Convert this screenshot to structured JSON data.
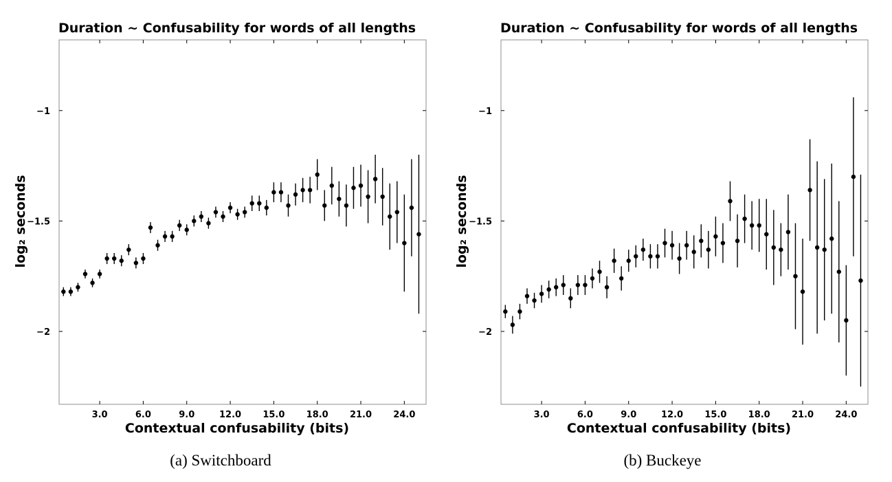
{
  "chart_data": [
    {
      "type": "scatter",
      "title": "Duration ~ Confusability for words of all lengths",
      "xlabel": "Contextual confusability (bits)",
      "ylabel": "log₂ seconds",
      "caption": "(a) Switchboard",
      "xlim": [
        0.2,
        25.5
      ],
      "ylim": [
        -2.33,
        -0.68
      ],
      "xticks": [
        3.0,
        6.0,
        9.0,
        12.0,
        15.0,
        18.0,
        21.0,
        24.0
      ],
      "yticks": [
        -1,
        -1.5,
        -2
      ],
      "grid": false,
      "points": [
        {
          "x": 0.5,
          "y": -1.82,
          "err": 0.02
        },
        {
          "x": 1.0,
          "y": -1.82,
          "err": 0.02
        },
        {
          "x": 1.5,
          "y": -1.8,
          "err": 0.02
        },
        {
          "x": 2.0,
          "y": -1.74,
          "err": 0.02
        },
        {
          "x": 2.5,
          "y": -1.78,
          "err": 0.02
        },
        {
          "x": 3.0,
          "y": -1.74,
          "err": 0.02
        },
        {
          "x": 3.5,
          "y": -1.67,
          "err": 0.025
        },
        {
          "x": 4.0,
          "y": -1.67,
          "err": 0.025
        },
        {
          "x": 4.5,
          "y": -1.68,
          "err": 0.025
        },
        {
          "x": 5.0,
          "y": -1.63,
          "err": 0.025
        },
        {
          "x": 5.5,
          "y": -1.69,
          "err": 0.025
        },
        {
          "x": 6.0,
          "y": -1.67,
          "err": 0.025
        },
        {
          "x": 6.5,
          "y": -1.53,
          "err": 0.025
        },
        {
          "x": 7.0,
          "y": -1.61,
          "err": 0.025
        },
        {
          "x": 7.5,
          "y": -1.57,
          "err": 0.025
        },
        {
          "x": 8.0,
          "y": -1.57,
          "err": 0.025
        },
        {
          "x": 8.5,
          "y": -1.52,
          "err": 0.025
        },
        {
          "x": 9.0,
          "y": -1.54,
          "err": 0.025
        },
        {
          "x": 9.5,
          "y": -1.5,
          "err": 0.025
        },
        {
          "x": 10.0,
          "y": -1.48,
          "err": 0.025
        },
        {
          "x": 10.5,
          "y": -1.51,
          "err": 0.025
        },
        {
          "x": 11.0,
          "y": -1.46,
          "err": 0.025
        },
        {
          "x": 11.5,
          "y": -1.48,
          "err": 0.025
        },
        {
          "x": 12.0,
          "y": -1.44,
          "err": 0.025
        },
        {
          "x": 12.5,
          "y": -1.47,
          "err": 0.025
        },
        {
          "x": 13.0,
          "y": -1.46,
          "err": 0.025
        },
        {
          "x": 13.5,
          "y": -1.42,
          "err": 0.035
        },
        {
          "x": 14.0,
          "y": -1.42,
          "err": 0.035
        },
        {
          "x": 14.5,
          "y": -1.44,
          "err": 0.035
        },
        {
          "x": 15.0,
          "y": -1.37,
          "err": 0.045
        },
        {
          "x": 15.5,
          "y": -1.37,
          "err": 0.045
        },
        {
          "x": 16.0,
          "y": -1.43,
          "err": 0.05
        },
        {
          "x": 16.5,
          "y": -1.38,
          "err": 0.05
        },
        {
          "x": 17.0,
          "y": -1.36,
          "err": 0.055
        },
        {
          "x": 17.5,
          "y": -1.36,
          "err": 0.06
        },
        {
          "x": 18.0,
          "y": -1.29,
          "err": 0.07
        },
        {
          "x": 18.5,
          "y": -1.43,
          "err": 0.07
        },
        {
          "x": 19.0,
          "y": -1.34,
          "err": 0.085
        },
        {
          "x": 19.5,
          "y": -1.4,
          "err": 0.08
        },
        {
          "x": 20.0,
          "y": -1.43,
          "err": 0.095
        },
        {
          "x": 20.5,
          "y": -1.35,
          "err": 0.095
        },
        {
          "x": 21.0,
          "y": -1.34,
          "err": 0.095
        },
        {
          "x": 21.5,
          "y": -1.39,
          "err": 0.12
        },
        {
          "x": 22.0,
          "y": -1.31,
          "err": 0.11
        },
        {
          "x": 22.5,
          "y": -1.39,
          "err": 0.13
        },
        {
          "x": 23.0,
          "y": -1.48,
          "err": 0.15
        },
        {
          "x": 23.5,
          "y": -1.46,
          "err": 0.14
        },
        {
          "x": 24.0,
          "y": -1.6,
          "err": 0.22
        },
        {
          "x": 24.5,
          "y": -1.44,
          "err": 0.22
        },
        {
          "x": 25.0,
          "y": -1.56,
          "err": 0.36
        }
      ]
    },
    {
      "type": "scatter",
      "title": "Duration ~ Confusability for words of all lengths",
      "xlabel": "Contextual confusability (bits)",
      "ylabel": "log₂ seconds",
      "caption": "(b) Buckeye",
      "xlim": [
        0.2,
        25.5
      ],
      "ylim": [
        -2.33,
        -0.68
      ],
      "xticks": [
        3.0,
        6.0,
        9.0,
        12.0,
        15.0,
        18.0,
        21.0,
        24.0
      ],
      "yticks": [
        -1,
        -1.5,
        -2
      ],
      "grid": false,
      "points": [
        {
          "x": 0.5,
          "y": -1.91,
          "err": 0.03
        },
        {
          "x": 1.0,
          "y": -1.97,
          "err": 0.04
        },
        {
          "x": 1.5,
          "y": -1.91,
          "err": 0.035
        },
        {
          "x": 2.0,
          "y": -1.84,
          "err": 0.035
        },
        {
          "x": 2.5,
          "y": -1.86,
          "err": 0.035
        },
        {
          "x": 3.0,
          "y": -1.83,
          "err": 0.04
        },
        {
          "x": 3.5,
          "y": -1.81,
          "err": 0.04
        },
        {
          "x": 4.0,
          "y": -1.8,
          "err": 0.04
        },
        {
          "x": 4.5,
          "y": -1.79,
          "err": 0.045
        },
        {
          "x": 5.0,
          "y": -1.85,
          "err": 0.045
        },
        {
          "x": 5.5,
          "y": -1.79,
          "err": 0.045
        },
        {
          "x": 6.0,
          "y": -1.79,
          "err": 0.045
        },
        {
          "x": 6.5,
          "y": -1.76,
          "err": 0.045
        },
        {
          "x": 7.0,
          "y": -1.73,
          "err": 0.05
        },
        {
          "x": 7.5,
          "y": -1.8,
          "err": 0.05
        },
        {
          "x": 8.0,
          "y": -1.68,
          "err": 0.055
        },
        {
          "x": 8.5,
          "y": -1.76,
          "err": 0.055
        },
        {
          "x": 9.0,
          "y": -1.68,
          "err": 0.05
        },
        {
          "x": 9.5,
          "y": -1.66,
          "err": 0.05
        },
        {
          "x": 10.0,
          "y": -1.63,
          "err": 0.05
        },
        {
          "x": 10.5,
          "y": -1.66,
          "err": 0.055
        },
        {
          "x": 11.0,
          "y": -1.66,
          "err": 0.055
        },
        {
          "x": 11.5,
          "y": -1.6,
          "err": 0.065
        },
        {
          "x": 12.0,
          "y": -1.61,
          "err": 0.065
        },
        {
          "x": 12.5,
          "y": -1.67,
          "err": 0.07
        },
        {
          "x": 13.0,
          "y": -1.61,
          "err": 0.065
        },
        {
          "x": 13.5,
          "y": -1.64,
          "err": 0.075
        },
        {
          "x": 14.0,
          "y": -1.59,
          "err": 0.075
        },
        {
          "x": 14.5,
          "y": -1.63,
          "err": 0.085
        },
        {
          "x": 15.0,
          "y": -1.57,
          "err": 0.09
        },
        {
          "x": 15.5,
          "y": -1.6,
          "err": 0.09
        },
        {
          "x": 16.0,
          "y": -1.41,
          "err": 0.09
        },
        {
          "x": 16.5,
          "y": -1.59,
          "err": 0.12
        },
        {
          "x": 17.0,
          "y": -1.49,
          "err": 0.11
        },
        {
          "x": 17.5,
          "y": -1.52,
          "err": 0.11
        },
        {
          "x": 18.0,
          "y": -1.52,
          "err": 0.12
        },
        {
          "x": 18.5,
          "y": -1.56,
          "err": 0.16
        },
        {
          "x": 19.0,
          "y": -1.62,
          "err": 0.17
        },
        {
          "x": 19.5,
          "y": -1.63,
          "err": 0.12
        },
        {
          "x": 20.0,
          "y": -1.55,
          "err": 0.17
        },
        {
          "x": 20.5,
          "y": -1.75,
          "err": 0.24
        },
        {
          "x": 21.0,
          "y": -1.82,
          "err": 0.24
        },
        {
          "x": 21.5,
          "y": -1.36,
          "err": 0.23
        },
        {
          "x": 22.0,
          "y": -1.62,
          "err": 0.39
        },
        {
          "x": 22.5,
          "y": -1.63,
          "err": 0.32
        },
        {
          "x": 23.0,
          "y": -1.58,
          "err": 0.34
        },
        {
          "x": 23.5,
          "y": -1.73,
          "err": 0.32
        },
        {
          "x": 24.0,
          "y": -1.95,
          "err": 0.25
        },
        {
          "x": 24.5,
          "y": -1.3,
          "err": 0.36
        },
        {
          "x": 25.0,
          "y": -1.77,
          "err": 0.48
        }
      ]
    }
  ],
  "y_tick_labels": [
    "−1",
    "−1.5",
    "−2"
  ],
  "x_tick_labels": [
    "3.0",
    "6.0",
    "9.0",
    "12.0",
    "15.0",
    "18.0",
    "21.0",
    "24.0"
  ]
}
